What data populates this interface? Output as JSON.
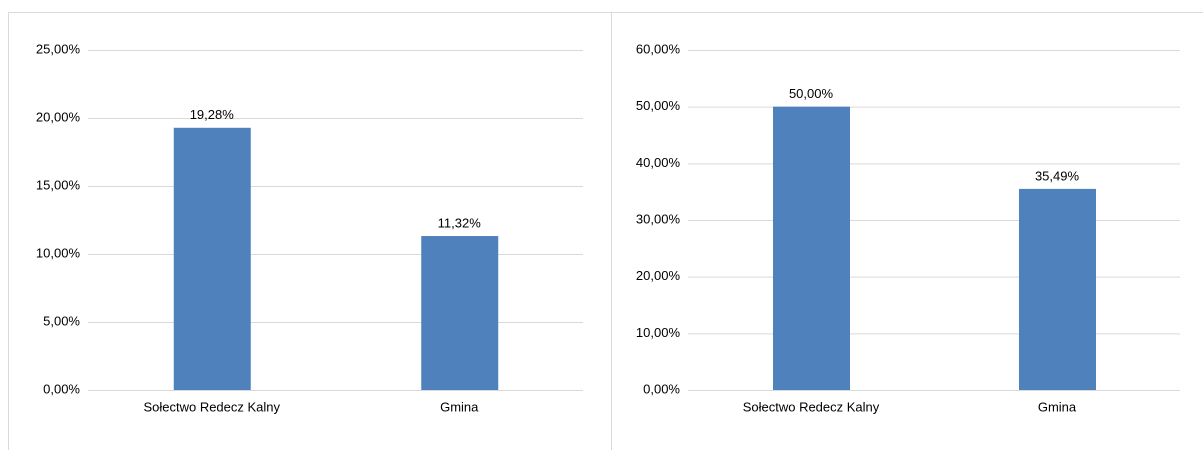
{
  "chart_data": [
    {
      "type": "bar",
      "categories": [
        "Sołectwo Redecz Kalny",
        "Gmina"
      ],
      "values": [
        19.28,
        11.32
      ],
      "value_labels": [
        "19,28%",
        "11,32%"
      ],
      "color": "#4f81bd",
      "ylim": [
        0,
        25
      ],
      "yticks": [
        {
          "value": 0,
          "label": "0,00%"
        },
        {
          "value": 5,
          "label": "5,00%"
        },
        {
          "value": 10,
          "label": "10,00%"
        },
        {
          "value": 15,
          "label": "15,00%"
        },
        {
          "value": 20,
          "label": "20,00%"
        },
        {
          "value": 25,
          "label": "25,00%"
        }
      ],
      "grid": true
    },
    {
      "type": "bar",
      "categories": [
        "Sołectwo Redecz Kalny",
        "Gmina"
      ],
      "values": [
        50,
        35.49
      ],
      "value_labels": [
        "50,00%",
        "35,49%"
      ],
      "color": "#4f81bd",
      "ylim": [
        0,
        60
      ],
      "yticks": [
        {
          "value": 0,
          "label": "0,00%"
        },
        {
          "value": 10,
          "label": "10,00%"
        },
        {
          "value": 20,
          "label": "20,00%"
        },
        {
          "value": 30,
          "label": "30,00%"
        },
        {
          "value": 40,
          "label": "40,00%"
        },
        {
          "value": 50,
          "label": "50,00%"
        },
        {
          "value": 60,
          "label": "60,00%"
        }
      ],
      "grid": true
    }
  ]
}
